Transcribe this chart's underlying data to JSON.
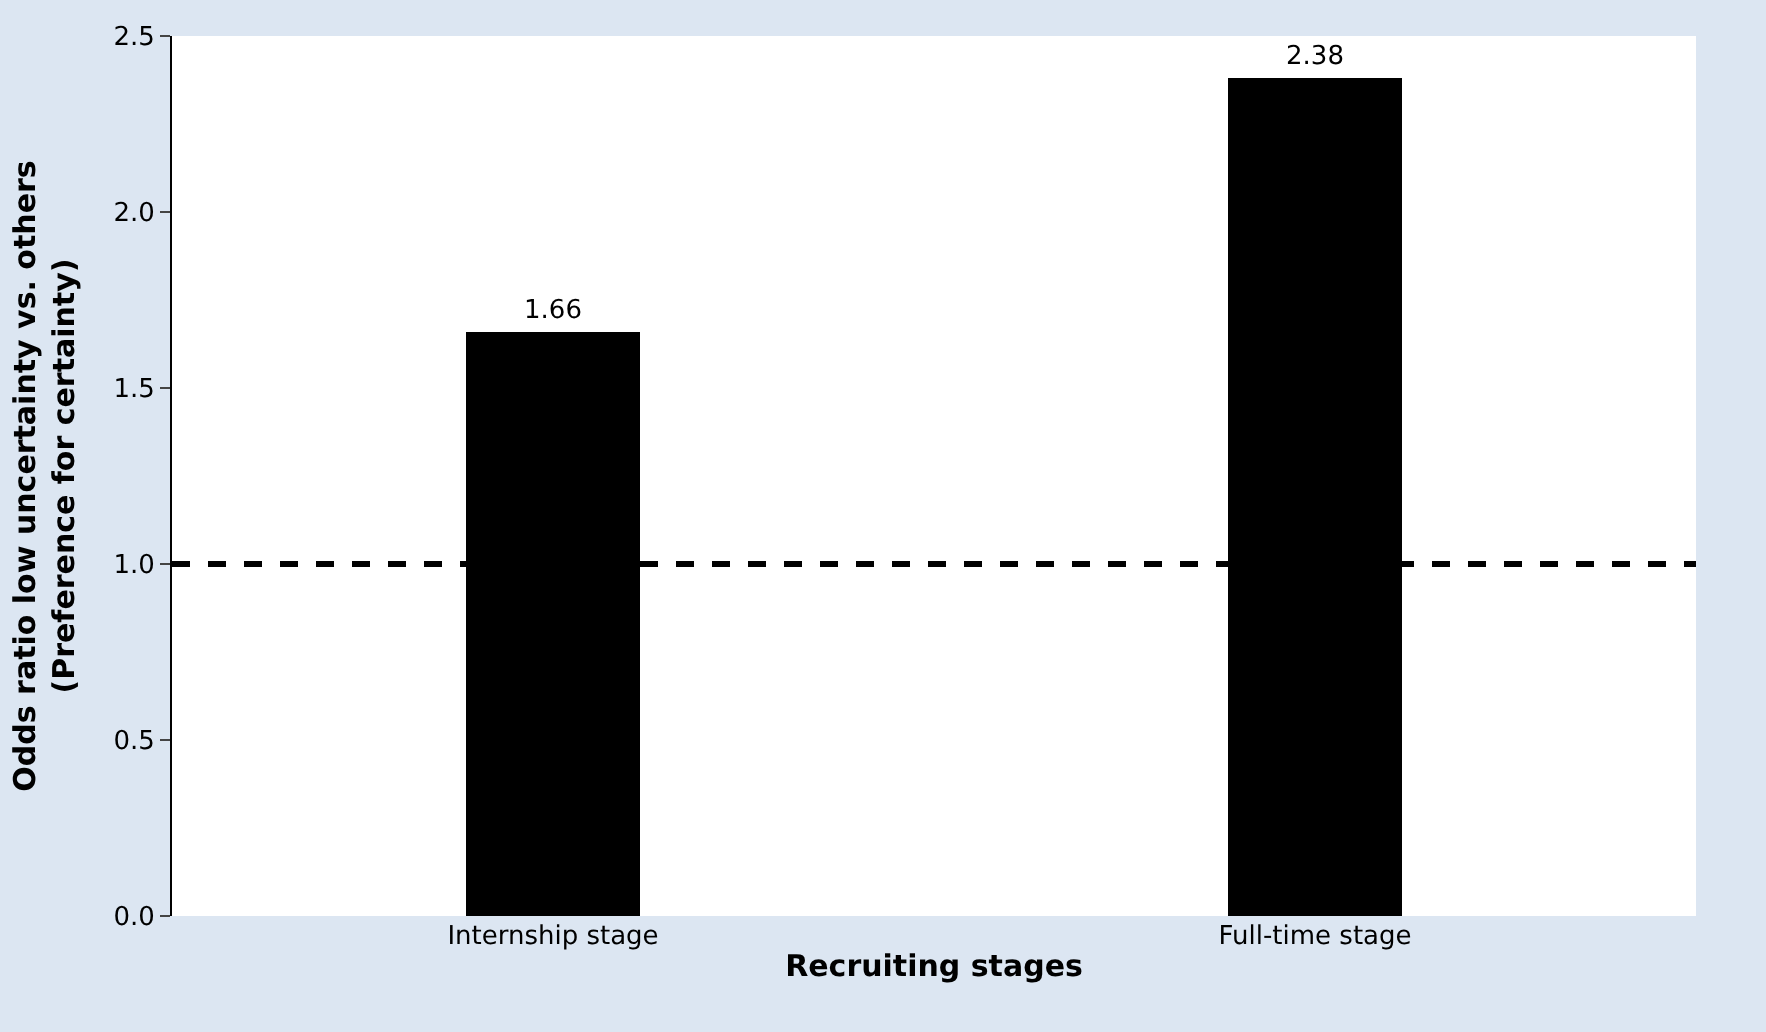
{
  "chart_data": {
    "type": "bar",
    "categories": [
      "Internship stage",
      "Full-time stage"
    ],
    "values": [
      1.66,
      2.38
    ],
    "color": "#000000",
    "data_labels": true,
    "xlabel": "Recruiting stages",
    "ylabel": "Odds ratio low uncertainty vs. others\n(Preference for certainty)",
    "ylim": [
      0,
      2.5
    ],
    "yticks": [
      {
        "value": 0,
        "label": "0.0"
      },
      {
        "value": 0.5,
        "label": "0.5"
      },
      {
        "value": 1,
        "label": "1.0"
      },
      {
        "value": 1.5,
        "label": "1.5"
      },
      {
        "value": 2,
        "label": "2.0"
      },
      {
        "value": 2.5,
        "label": "2.5"
      }
    ],
    "ref_lines": [
      {
        "axis": "y",
        "value": 1,
        "label": null,
        "color": "#000000",
        "line_style": "dashed"
      }
    ],
    "legend": false
  }
}
